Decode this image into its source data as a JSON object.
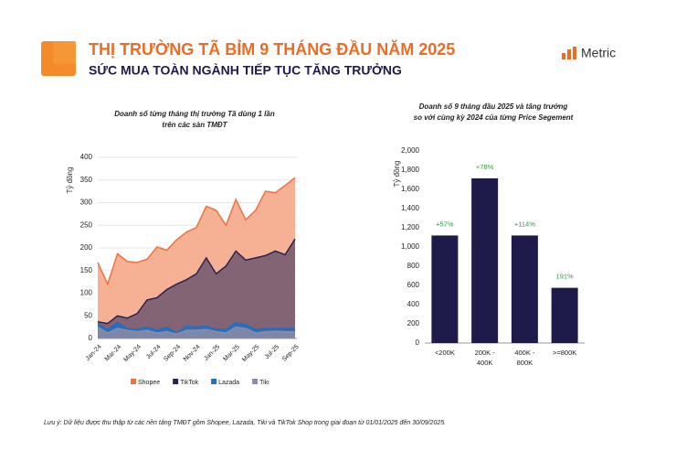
{
  "header": {
    "title": "THỊ TRƯỜNG TÃ BỈM 9 THÁNG ĐẦU NĂM 2025",
    "subtitle": "SỨC MUA TOÀN NGÀNH TIẾP TỤC TĂNG TRƯỞNG",
    "logo": "Metric"
  },
  "chart_data": [
    {
      "type": "area",
      "title": [
        "Doanh số từng tháng thị trường Tã dùng 1 lần",
        "trên các sàn TMĐT"
      ],
      "y_label": "Tỷ đồng",
      "categories": [
        "Jan-24",
        null,
        "Mar-24",
        null,
        "May-24",
        null,
        "Jul-24",
        null,
        "Sep-24",
        null,
        "Nov-24",
        null,
        "Jan-25",
        null,
        "Mar-25",
        null,
        "May-25",
        null,
        "Jul-25",
        null,
        "Sep-25"
      ],
      "series": [
        {
          "name": "Shopee",
          "color": "#f07040",
          "fill": "#f5a98a",
          "values": [
            168,
            120,
            187,
            170,
            168,
            175,
            202,
            195,
            218,
            235,
            245,
            292,
            283,
            250,
            307,
            262,
            283,
            325,
            322,
            338,
            355
          ]
        },
        {
          "name": "TikTok",
          "color": "#2a2350",
          "fill": "#6e5770",
          "values": [
            37,
            33,
            50,
            45,
            55,
            85,
            90,
            108,
            120,
            130,
            143,
            178,
            143,
            160,
            193,
            173,
            178,
            183,
            193,
            185,
            220
          ]
        },
        {
          "name": "Lazada",
          "color": "#1f6fc5",
          "fill": "#1f6fc5",
          "values": [
            33,
            20,
            35,
            22,
            20,
            25,
            18,
            25,
            12,
            27,
            25,
            27,
            20,
            20,
            35,
            30,
            20,
            22,
            22,
            22,
            22
          ]
        },
        {
          "name": "Tiki",
          "color": "#8c8ca6",
          "fill": "#8c8ca6",
          "values": [
            25,
            12,
            22,
            18,
            15,
            18,
            12,
            15,
            10,
            18,
            18,
            20,
            15,
            12,
            25,
            22,
            12,
            15,
            16,
            15,
            15
          ]
        }
      ],
      "ylim": [
        0,
        400
      ],
      "yticks": [
        0,
        50,
        100,
        150,
        200,
        250,
        300,
        350,
        400
      ],
      "grid": true,
      "legend": "bottom"
    },
    {
      "type": "bar",
      "title": [
        "Doanh số 9 tháng đầu 2025 và tăng trưởng",
        "so với cùng kỳ 2024 của từng Price Segement"
      ],
      "y_label": "Tỷ đồng",
      "categories": [
        [
          "<200K"
        ],
        [
          "200K -",
          "400K"
        ],
        [
          "400K -",
          "800K"
        ],
        [
          ">=800K"
        ]
      ],
      "values": [
        1120,
        1715,
        1120,
        575
      ],
      "growth_labels": [
        "+57%",
        "+78%",
        "+114%",
        "191%"
      ],
      "color": "#1e1b4b",
      "growth_color": "#3a9a4a",
      "ylim": [
        0,
        2000
      ],
      "yticks": [
        0,
        200,
        400,
        600,
        800,
        {
          "value": 1000,
          "label": "1,000"
        },
        {
          "value": 1200,
          "label": "1,200"
        },
        {
          "value": 1400,
          "label": "1,400"
        },
        {
          "value": 1600,
          "label": "1,600"
        },
        {
          "value": 1800,
          "label": "1,800"
        },
        {
          "value": 2000,
          "label": "2,000"
        }
      ]
    }
  ],
  "footnote": "Lưu ý: Dữ liệu được thu thập từ các nền tảng TMĐT gồm Shopee, Lazada, Tiki và TikTok Shop trong giai đoạn từ 01/01/2025 đến 30/09/2025."
}
